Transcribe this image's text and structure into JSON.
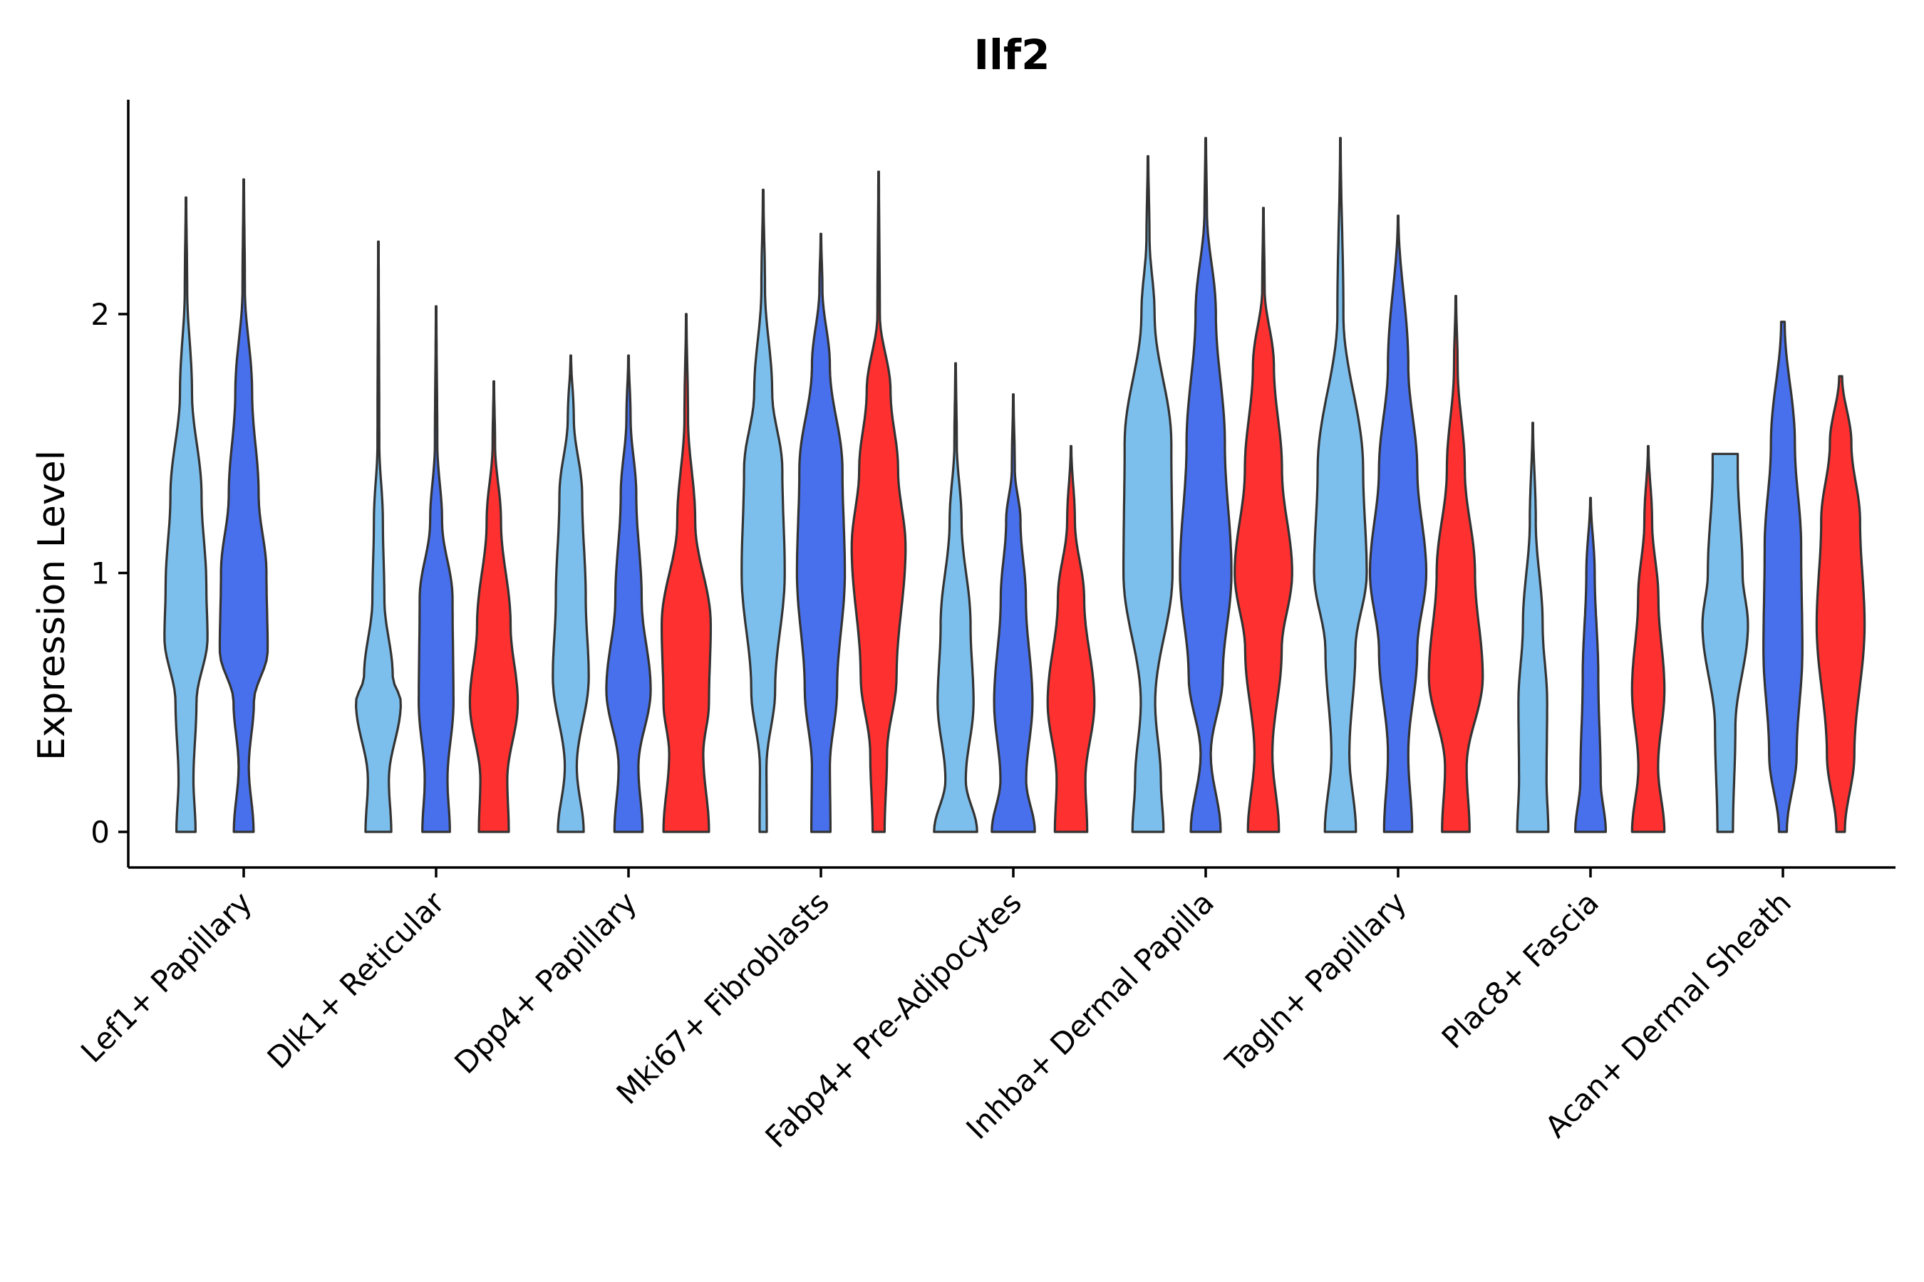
{
  "chart_data": {
    "type": "violin",
    "title": "Ilf2",
    "xlabel": "",
    "ylabel": "Expression Level",
    "ylim": [
      -0.135,
      2.8
    ],
    "yticks": [
      0,
      1,
      2
    ],
    "grid": false,
    "legend": "none",
    "categories": [
      "Lef1+ Papillary",
      "Dlk1+ Reticular",
      "Dpp4+ Papillary",
      "Mki67+ Fibroblasts",
      "Fabp4+ Pre-Adipocytes",
      "Inhba+ Dermal Papilla",
      "Tagln+ Papillary",
      "Plac8+ Fascia",
      "Acan+ Dermal Sheath"
    ],
    "series_colors": [
      "#7DBFEC",
      "#4870EC",
      "#FF3030"
    ],
    "violins": [
      [
        {
          "max": 2.45,
          "profile": [
            [
              0,
              0.32
            ],
            [
              0.2,
              0.25
            ],
            [
              0.5,
              0.35
            ],
            [
              0.75,
              0.72
            ],
            [
              0.95,
              0.68
            ],
            [
              1.3,
              0.52
            ],
            [
              1.7,
              0.2
            ],
            [
              2.1,
              0.04
            ],
            [
              2.45,
              0.01
            ]
          ]
        },
        {
          "max": 2.52,
          "profile": [
            [
              0,
              0.33
            ],
            [
              0.25,
              0.17
            ],
            [
              0.5,
              0.34
            ],
            [
              0.7,
              0.8
            ],
            [
              1.0,
              0.76
            ],
            [
              1.3,
              0.5
            ],
            [
              1.7,
              0.28
            ],
            [
              2.1,
              0.04
            ],
            [
              2.52,
              0.01
            ]
          ]
        },
        null
      ],
      [
        {
          "max": 2.28,
          "profile": [
            [
              0,
              0.43
            ],
            [
              0.2,
              0.35
            ],
            [
              0.5,
              0.75
            ],
            [
              0.6,
              0.48
            ],
            [
              0.9,
              0.2
            ],
            [
              1.2,
              0.15
            ],
            [
              1.5,
              0.03
            ],
            [
              2.28,
              0.01
            ]
          ]
        },
        {
          "max": 2.03,
          "profile": [
            [
              0,
              0.46
            ],
            [
              0.2,
              0.38
            ],
            [
              0.5,
              0.58
            ],
            [
              0.9,
              0.55
            ],
            [
              1.2,
              0.2
            ],
            [
              1.5,
              0.04
            ],
            [
              2.03,
              0.01
            ]
          ]
        },
        {
          "max": 1.74,
          "profile": [
            [
              0,
              0.5
            ],
            [
              0.2,
              0.45
            ],
            [
              0.5,
              0.8
            ],
            [
              0.8,
              0.56
            ],
            [
              1.2,
              0.24
            ],
            [
              1.5,
              0.04
            ],
            [
              1.74,
              0.01
            ]
          ]
        }
      ],
      [
        {
          "max": 1.84,
          "profile": [
            [
              0,
              0.43
            ],
            [
              0.25,
              0.2
            ],
            [
              0.6,
              0.6
            ],
            [
              0.9,
              0.5
            ],
            [
              1.3,
              0.38
            ],
            [
              1.6,
              0.1
            ],
            [
              1.84,
              0.01
            ]
          ]
        },
        {
          "max": 1.84,
          "profile": [
            [
              0,
              0.47
            ],
            [
              0.25,
              0.33
            ],
            [
              0.55,
              0.74
            ],
            [
              0.9,
              0.44
            ],
            [
              1.3,
              0.26
            ],
            [
              1.6,
              0.07
            ],
            [
              1.84,
              0.01
            ]
          ]
        },
        {
          "max": 2.0,
          "profile": [
            [
              0,
              0.76
            ],
            [
              0.3,
              0.57
            ],
            [
              0.5,
              0.76
            ],
            [
              0.8,
              0.82
            ],
            [
              1.2,
              0.3
            ],
            [
              1.6,
              0.06
            ],
            [
              2.0,
              0.01
            ]
          ]
        }
      ],
      [
        {
          "max": 2.48,
          "profile": [
            [
              0,
              0.12
            ],
            [
              0.25,
              0.11
            ],
            [
              0.55,
              0.4
            ],
            [
              1.0,
              0.72
            ],
            [
              1.4,
              0.64
            ],
            [
              1.7,
              0.3
            ],
            [
              2.1,
              0.06
            ],
            [
              2.48,
              0.01
            ]
          ]
        },
        {
          "max": 2.31,
          "profile": [
            [
              0,
              0.32
            ],
            [
              0.25,
              0.3
            ],
            [
              0.55,
              0.54
            ],
            [
              1.0,
              0.8
            ],
            [
              1.4,
              0.72
            ],
            [
              1.8,
              0.3
            ],
            [
              2.1,
              0.05
            ],
            [
              2.31,
              0.01
            ]
          ]
        },
        {
          "max": 2.55,
          "profile": [
            [
              0,
              0.2
            ],
            [
              0.3,
              0.28
            ],
            [
              0.6,
              0.6
            ],
            [
              1.1,
              0.9
            ],
            [
              1.4,
              0.65
            ],
            [
              1.7,
              0.4
            ],
            [
              2.0,
              0.04
            ],
            [
              2.55,
              0.01
            ]
          ]
        }
      ],
      [
        {
          "max": 1.81,
          "profile": [
            [
              0,
              0.72
            ],
            [
              0.2,
              0.34
            ],
            [
              0.5,
              0.6
            ],
            [
              0.8,
              0.5
            ],
            [
              1.2,
              0.2
            ],
            [
              1.5,
              0.04
            ],
            [
              1.81,
              0.01
            ]
          ]
        },
        {
          "max": 1.69,
          "profile": [
            [
              0,
              0.72
            ],
            [
              0.2,
              0.43
            ],
            [
              0.5,
              0.64
            ],
            [
              0.9,
              0.42
            ],
            [
              1.2,
              0.24
            ],
            [
              1.4,
              0.05
            ],
            [
              1.69,
              0.01
            ]
          ]
        },
        {
          "max": 1.49,
          "profile": [
            [
              0,
              0.54
            ],
            [
              0.2,
              0.48
            ],
            [
              0.5,
              0.78
            ],
            [
              0.9,
              0.44
            ],
            [
              1.2,
              0.13
            ],
            [
              1.49,
              0.01
            ]
          ]
        }
      ],
      [
        {
          "max": 2.61,
          "profile": [
            [
              0,
              0.52
            ],
            [
              0.2,
              0.43
            ],
            [
              0.5,
              0.24
            ],
            [
              1.0,
              0.82
            ],
            [
              1.5,
              0.78
            ],
            [
              2.0,
              0.22
            ],
            [
              2.3,
              0.05
            ],
            [
              2.61,
              0.01
            ]
          ]
        },
        {
          "max": 2.68,
          "profile": [
            [
              0,
              0.5
            ],
            [
              0.3,
              0.17
            ],
            [
              0.6,
              0.57
            ],
            [
              1.0,
              0.86
            ],
            [
              1.5,
              0.64
            ],
            [
              2.0,
              0.34
            ],
            [
              2.4,
              0.04
            ],
            [
              2.68,
              0.01
            ]
          ]
        },
        {
          "max": 2.41,
          "profile": [
            [
              0,
              0.52
            ],
            [
              0.3,
              0.3
            ],
            [
              0.7,
              0.61
            ],
            [
              1.0,
              0.96
            ],
            [
              1.4,
              0.62
            ],
            [
              1.8,
              0.35
            ],
            [
              2.1,
              0.04
            ],
            [
              2.41,
              0.01
            ]
          ]
        }
      ],
      [
        {
          "max": 2.68,
          "profile": [
            [
              0,
              0.52
            ],
            [
              0.3,
              0.3
            ],
            [
              0.7,
              0.5
            ],
            [
              1.0,
              0.88
            ],
            [
              1.4,
              0.76
            ],
            [
              2.0,
              0.1
            ],
            [
              2.68,
              0.01
            ]
          ]
        },
        {
          "max": 2.38,
          "profile": [
            [
              0,
              0.47
            ],
            [
              0.3,
              0.34
            ],
            [
              0.7,
              0.64
            ],
            [
              1.0,
              0.94
            ],
            [
              1.4,
              0.64
            ],
            [
              1.8,
              0.34
            ],
            [
              2.38,
              0.01
            ]
          ]
        },
        {
          "max": 2.07,
          "profile": [
            [
              0,
              0.46
            ],
            [
              0.25,
              0.36
            ],
            [
              0.6,
              0.9
            ],
            [
              1.0,
              0.64
            ],
            [
              1.4,
              0.3
            ],
            [
              1.8,
              0.06
            ],
            [
              2.07,
              0.01
            ]
          ]
        }
      ],
      [
        {
          "max": 1.58,
          "profile": [
            [
              0,
              0.52
            ],
            [
              0.2,
              0.46
            ],
            [
              0.5,
              0.48
            ],
            [
              0.8,
              0.33
            ],
            [
              1.2,
              0.1
            ],
            [
              1.58,
              0.01
            ]
          ]
        },
        {
          "max": 1.29,
          "profile": [
            [
              0,
              0.51
            ],
            [
              0.2,
              0.34
            ],
            [
              0.6,
              0.26
            ],
            [
              1.0,
              0.14
            ],
            [
              1.29,
              0.01
            ]
          ]
        },
        {
          "max": 1.49,
          "profile": [
            [
              0,
              0.54
            ],
            [
              0.25,
              0.33
            ],
            [
              0.55,
              0.54
            ],
            [
              0.9,
              0.34
            ],
            [
              1.2,
              0.13
            ],
            [
              1.49,
              0.01
            ]
          ]
        }
      ],
      [
        {
          "max": 1.46,
          "profile": [
            [
              0,
              0.26
            ],
            [
              0.4,
              0.34
            ],
            [
              0.8,
              0.76
            ],
            [
              1.0,
              0.58
            ],
            [
              1.4,
              0.42
            ],
            [
              1.46,
              0.42
            ]
          ]
        },
        {
          "max": 1.97,
          "profile": [
            [
              0,
              0.13
            ],
            [
              0.3,
              0.46
            ],
            [
              0.7,
              0.65
            ],
            [
              1.1,
              0.61
            ],
            [
              1.5,
              0.4
            ],
            [
              1.97,
              0.06
            ]
          ]
        },
        {
          "max": 1.76,
          "profile": [
            [
              0,
              0.14
            ],
            [
              0.3,
              0.46
            ],
            [
              0.8,
              0.8
            ],
            [
              1.2,
              0.65
            ],
            [
              1.5,
              0.36
            ],
            [
              1.76,
              0.05
            ]
          ]
        }
      ]
    ]
  }
}
